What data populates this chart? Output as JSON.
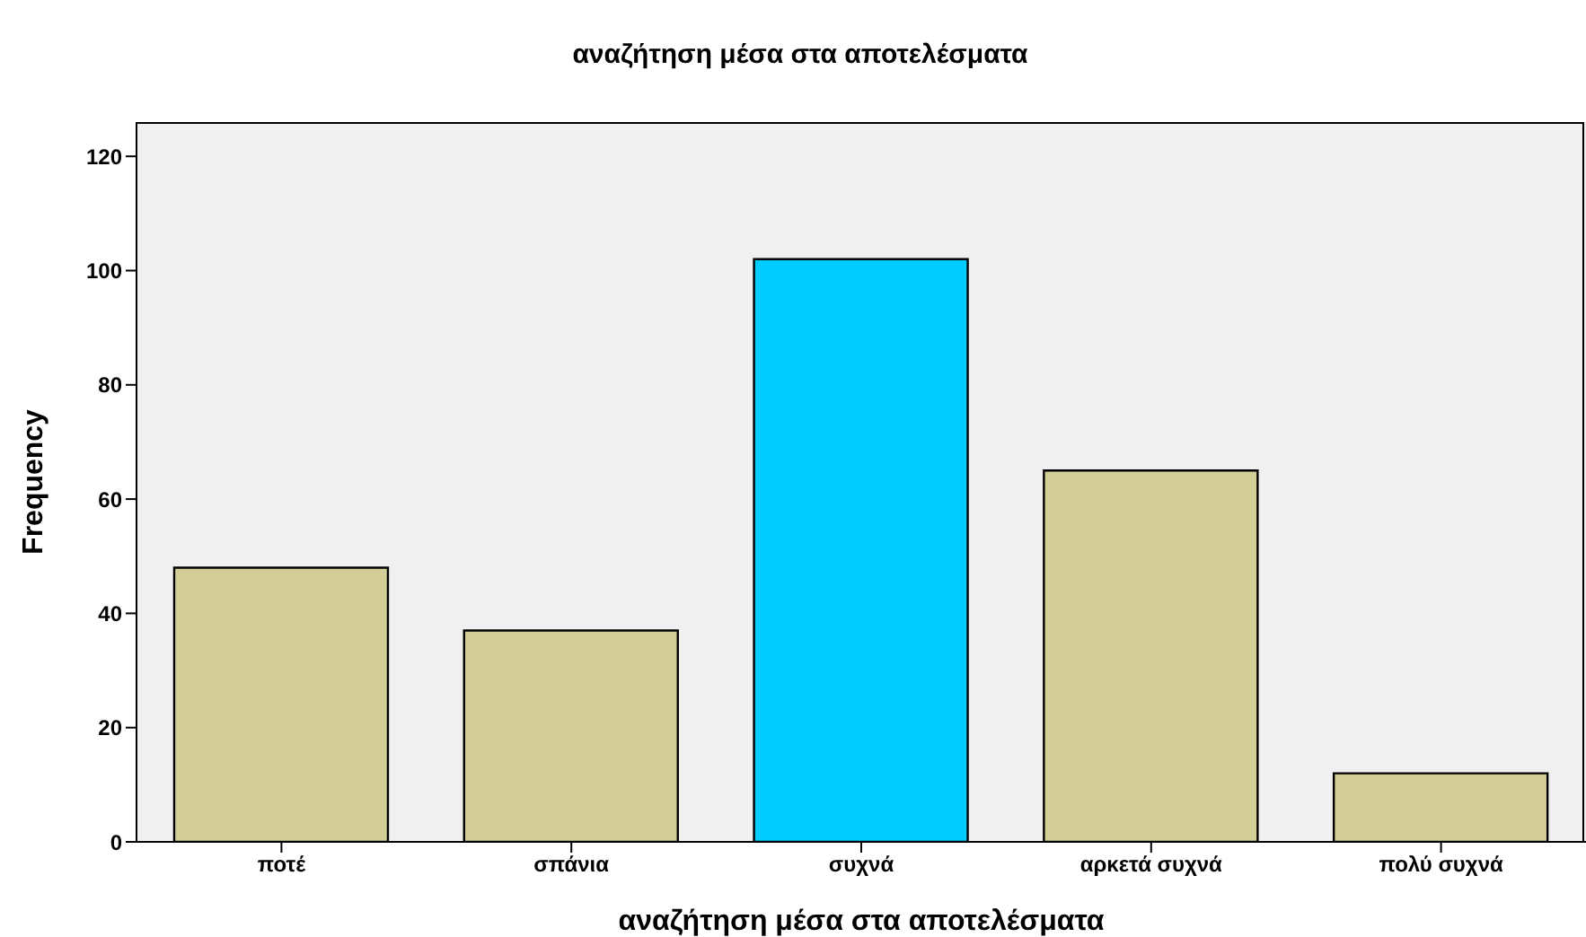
{
  "chart_data": {
    "type": "bar",
    "title": "αναζήτηση μέσα στα αποτελέσματα",
    "xlabel": "αναζήτηση μέσα στα αποτελέσματα",
    "ylabel": "Frequency",
    "categories": [
      "ποτέ",
      "σπάνια",
      "συχνά",
      "αρκετά συχνά",
      "πολύ συχνά"
    ],
    "values": [
      48,
      37,
      102,
      65,
      12
    ],
    "colors": [
      "#d3ce97",
      "#d3ce97",
      "#00ccff",
      "#d3ce97",
      "#d3ce97"
    ],
    "ylim": [
      0,
      126
    ],
    "yticks": [
      0,
      20,
      40,
      60,
      80,
      100,
      120
    ]
  }
}
